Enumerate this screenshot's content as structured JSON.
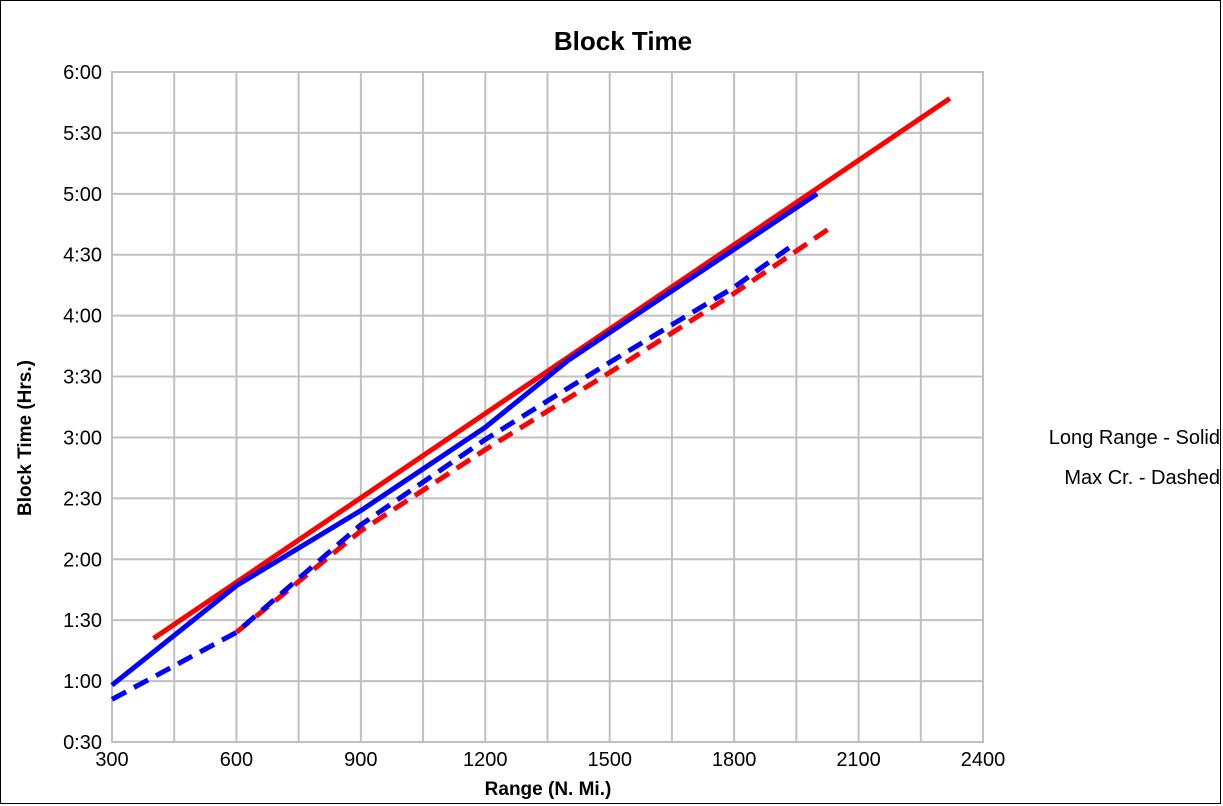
{
  "chart_data": {
    "type": "line",
    "title": "Block Time",
    "xlabel": "Range (N. Mi.)",
    "ylabel": "Block Time (Hrs.)",
    "xlim": [
      300,
      2400
    ],
    "ylim": [
      30,
      360
    ],
    "x_ticks": [
      300,
      600,
      900,
      1200,
      1500,
      1800,
      2100,
      2400
    ],
    "x_tick_labels": [
      "300",
      "600",
      "900",
      "1200",
      "1500",
      "1800",
      "2100",
      "2400"
    ],
    "y_ticks": [
      30,
      60,
      90,
      120,
      150,
      180,
      210,
      240,
      270,
      300,
      330,
      360
    ],
    "y_tick_labels": [
      "0:30",
      "1:00",
      "1:30",
      "2:00",
      "2:30",
      "3:00",
      "3:30",
      "4:00",
      "4:30",
      "5:00",
      "5:30",
      "6:00"
    ],
    "y_unit": "minutes",
    "grid": true,
    "annotations": [
      "Long Range - Solid",
      "Max Cr. - Dashed"
    ],
    "series": [
      {
        "color": "#ff0000",
        "dash": "solid",
        "x": [
          400,
          2320
        ],
        "y": [
          81,
          347
        ]
      },
      {
        "color": "#ff0000",
        "dash": "dashed",
        "x": [
          600,
          900,
          1200,
          1500,
          1800,
          2030
        ],
        "y": [
          84,
          134,
          174,
          212,
          251,
          283
        ]
      },
      {
        "color": "#0000ff",
        "dash": "solid",
        "x": [
          300,
          600,
          900,
          1200,
          1400,
          1700,
          2000
        ],
        "y": [
          58,
          107,
          144,
          185,
          218,
          259,
          300
        ]
      },
      {
        "color": "#0000ff",
        "dash": "dashed",
        "x": [
          300,
          600,
          900,
          1200,
          1500,
          1800,
          1950
        ],
        "y": [
          51,
          84,
          137,
          179,
          217,
          254,
          276
        ]
      }
    ]
  }
}
